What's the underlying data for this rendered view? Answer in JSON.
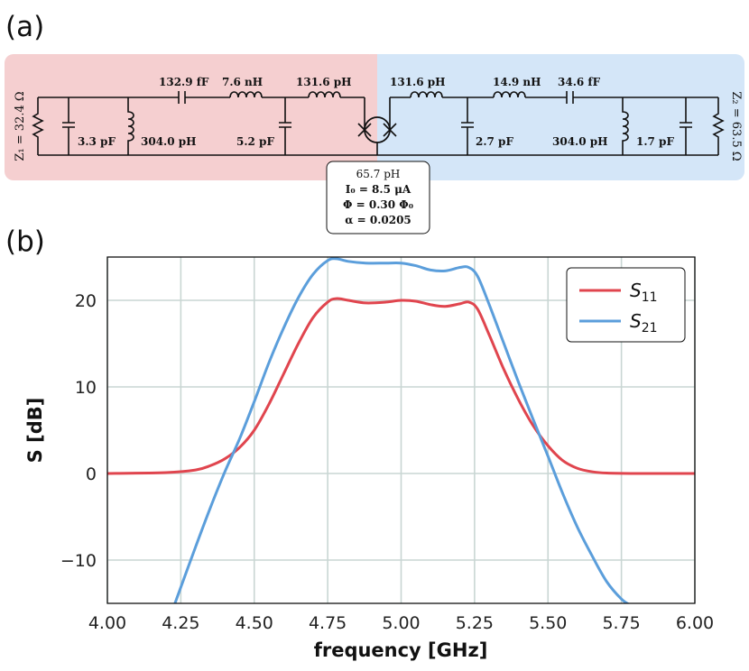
{
  "panel_a": {
    "label": "(a)",
    "left_impedance": "Z₁ = 32.4 Ω",
    "right_impedance": "Z₂ = 63.5 Ω",
    "components": {
      "series_cap_left": "132.9 fF",
      "series_ind_left": "7.6 nH",
      "series_ind_mid_left": "131.6 pH",
      "series_ind_mid_right": "131.6 pH",
      "series_ind_right": "14.9 nH",
      "series_cap_right": "34.6 fF",
      "shunt_cap_left_1": "3.3 pF",
      "shunt_ind_left": "304.0 pH",
      "shunt_cap_left_2": "5.2 pF",
      "shunt_cap_right_1": "2.7 pF",
      "shunt_ind_right": "304.0 pH",
      "shunt_cap_right_2": "1.7 pF"
    },
    "junction": {
      "inductance": "65.7 pH",
      "current": "I₀ = 8.5 μA",
      "flux": "Φ = 0.30 Φ₀",
      "alpha": "α = 0.0205"
    },
    "colors": {
      "left_bg": "#f5cfd0",
      "right_bg": "#d4e6f8"
    }
  },
  "panel_b": {
    "label": "(b)"
  },
  "chart_data": {
    "type": "line",
    "xlabel": "frequency [GHz]",
    "ylabel": "S [dB]",
    "xlim": [
      4.0,
      6.0
    ],
    "ylim": [
      -15,
      25
    ],
    "xticks": [
      "4.00",
      "4.25",
      "4.50",
      "4.75",
      "5.00",
      "5.25",
      "5.50",
      "5.75",
      "6.00"
    ],
    "yticks": [
      "−10",
      "0",
      "10",
      "20"
    ],
    "grid": true,
    "legend_position": "top-right",
    "series": [
      {
        "name": "S11",
        "label_base": "S",
        "label_sub": "11",
        "color": "#e0454e",
        "x": [
          4.0,
          4.2,
          4.3,
          4.35,
          4.4,
          4.45,
          4.5,
          4.55,
          4.6,
          4.65,
          4.7,
          4.75,
          4.78,
          4.82,
          4.88,
          4.95,
          5.0,
          5.05,
          5.1,
          5.15,
          5.2,
          5.23,
          5.26,
          5.3,
          5.35,
          5.4,
          5.45,
          5.5,
          5.55,
          5.6,
          5.65,
          5.7,
          5.8,
          6.0
        ],
        "y": [
          0,
          0.1,
          0.4,
          0.9,
          1.7,
          3.0,
          5.0,
          8.0,
          11.5,
          15.0,
          18.0,
          19.8,
          20.2,
          20.0,
          19.7,
          19.8,
          20.0,
          19.9,
          19.5,
          19.3,
          19.6,
          19.8,
          19.0,
          16.0,
          12.0,
          8.5,
          5.5,
          3.2,
          1.5,
          0.6,
          0.2,
          0.05,
          0,
          0
        ]
      },
      {
        "name": "S21",
        "label_base": "S",
        "label_sub": "21",
        "color": "#5b9edb",
        "x": [
          4.23,
          4.3,
          4.35,
          4.4,
          4.45,
          4.5,
          4.55,
          4.6,
          4.65,
          4.7,
          4.75,
          4.78,
          4.82,
          4.88,
          4.95,
          5.0,
          5.05,
          5.1,
          5.15,
          5.2,
          5.23,
          5.26,
          5.3,
          5.35,
          5.4,
          5.45,
          5.5,
          5.55,
          5.6,
          5.65,
          5.7,
          5.75,
          5.78
        ],
        "y": [
          -15,
          -8.5,
          -4.0,
          0.2,
          4.0,
          8.3,
          12.8,
          16.8,
          20.3,
          23.0,
          24.6,
          24.8,
          24.5,
          24.3,
          24.3,
          24.3,
          24.0,
          23.5,
          23.4,
          23.8,
          23.8,
          22.8,
          19.5,
          15.0,
          10.5,
          6.2,
          2.0,
          -2.3,
          -6.2,
          -9.5,
          -12.5,
          -14.5,
          -15.2
        ]
      }
    ]
  }
}
